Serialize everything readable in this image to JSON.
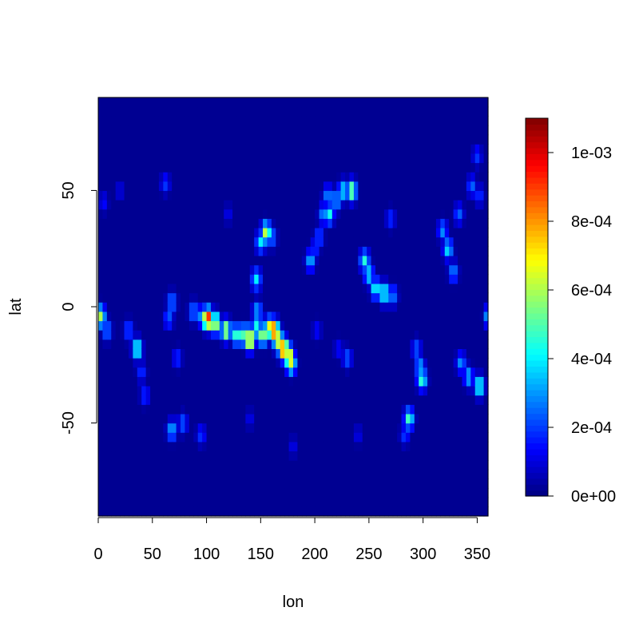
{
  "chart_data": {
    "type": "heatmap",
    "title": "",
    "xlabel": "lon",
    "ylabel": "lat",
    "xlim": [
      0,
      360
    ],
    "ylim": [
      -90,
      90
    ],
    "x_ticks": [
      0,
      50,
      100,
      150,
      200,
      250,
      300,
      350
    ],
    "x_tick_labels": [
      "0",
      "50",
      "100",
      "150",
      "200",
      "250",
      "300",
      "350"
    ],
    "y_ticks": [
      -50,
      0,
      50
    ],
    "y_tick_labels": [
      "-50",
      "0",
      "50"
    ],
    "colorbar": {
      "min": 0,
      "max": 0.0011,
      "ticks": [
        0,
        0.0002,
        0.0004,
        0.0006,
        0.0008,
        0.001
      ],
      "tick_labels": [
        "0e+00",
        "2e-04",
        "4e-04",
        "6e-04",
        "8e-04",
        "1e-03"
      ],
      "colormap": [
        "#00007F",
        "#0000FF",
        "#007FFF",
        "#00FFFF",
        "#7FFF7F",
        "#FFFF00",
        "#FF7F00",
        "#FF0000",
        "#7F0000"
      ]
    },
    "background_value": 2e-05,
    "features": [
      {
        "lon": 2,
        "lat": -4,
        "value": 0.0006
      },
      {
        "lon": 8,
        "lat": -10,
        "value": 0.0003
      },
      {
        "lon": 28,
        "lat": -10,
        "value": 0.00025
      },
      {
        "lon": 36,
        "lat": -18,
        "value": 0.0005
      },
      {
        "lon": 40,
        "lat": -28,
        "value": 0.0002
      },
      {
        "lon": 43,
        "lat": -38,
        "value": 0.0002
      },
      {
        "lon": 68,
        "lat": 2,
        "value": 0.0003
      },
      {
        "lon": 65,
        "lat": -5,
        "value": 0.00025
      },
      {
        "lon": 73,
        "lat": -22,
        "value": 0.0002
      },
      {
        "lon": 68,
        "lat": -53,
        "value": 0.00035
      },
      {
        "lon": 78,
        "lat": -50,
        "value": 0.00025
      },
      {
        "lon": 95,
        "lat": -55,
        "value": 0.0002
      },
      {
        "lon": 88,
        "lat": -2,
        "value": 0.0003
      },
      {
        "lon": 97,
        "lat": -4,
        "value": 0.00045
      },
      {
        "lon": 101,
        "lat": -5,
        "value": 0.001
      },
      {
        "lon": 108,
        "lat": -7,
        "value": 0.0007
      },
      {
        "lon": 118,
        "lat": -10,
        "value": 0.00065
      },
      {
        "lon": 128,
        "lat": -12,
        "value": 0.00055
      },
      {
        "lon": 136,
        "lat": -12,
        "value": 0.0006
      },
      {
        "lon": 140,
        "lat": -14,
        "value": 0.00085
      },
      {
        "lon": 146,
        "lat": -9,
        "value": 0.00045
      },
      {
        "lon": 147,
        "lat": -2,
        "value": 0.00035
      },
      {
        "lon": 146,
        "lat": 12,
        "value": 0.0004
      },
      {
        "lon": 152,
        "lat": -12,
        "value": 0.00065
      },
      {
        "lon": 158,
        "lat": -9,
        "value": 0.0007
      },
      {
        "lon": 162,
        "lat": -10,
        "value": 0.00095
      },
      {
        "lon": 166,
        "lat": -14,
        "value": 0.00075
      },
      {
        "lon": 171,
        "lat": -18,
        "value": 0.00095
      },
      {
        "lon": 176,
        "lat": -21,
        "value": 0.0008
      },
      {
        "lon": 178,
        "lat": -24,
        "value": 0.00065
      },
      {
        "lon": 155,
        "lat": 32,
        "value": 0.00065
      },
      {
        "lon": 150,
        "lat": 28,
        "value": 0.0004
      },
      {
        "lon": 160,
        "lat": 30,
        "value": 0.0003
      },
      {
        "lon": 62,
        "lat": 53,
        "value": 0.0002
      },
      {
        "lon": 200,
        "lat": 25,
        "value": 0.0002
      },
      {
        "lon": 196,
        "lat": 20,
        "value": 0.00035
      },
      {
        "lon": 204,
        "lat": 30,
        "value": 0.00025
      },
      {
        "lon": 208,
        "lat": 40,
        "value": 0.0003
      },
      {
        "lon": 212,
        "lat": 48,
        "value": 0.0003
      },
      {
        "lon": 220,
        "lat": 46,
        "value": 0.00035
      },
      {
        "lon": 226,
        "lat": 50,
        "value": 0.0004
      },
      {
        "lon": 234,
        "lat": 50,
        "value": 0.0006
      },
      {
        "lon": 213,
        "lat": 40,
        "value": 0.00045
      },
      {
        "lon": 246,
        "lat": 20,
        "value": 0.00045
      },
      {
        "lon": 250,
        "lat": 14,
        "value": 0.0004
      },
      {
        "lon": 256,
        "lat": 8,
        "value": 0.00045
      },
      {
        "lon": 264,
        "lat": 6,
        "value": 0.0005
      },
      {
        "lon": 272,
        "lat": 5,
        "value": 0.0003
      },
      {
        "lon": 270,
        "lat": 38,
        "value": 0.0002
      },
      {
        "lon": 222,
        "lat": -18,
        "value": 0.00015
      },
      {
        "lon": 230,
        "lat": -22,
        "value": 0.00025
      },
      {
        "lon": 202,
        "lat": -10,
        "value": 0.00015
      },
      {
        "lon": 287,
        "lat": -48,
        "value": 0.0005
      },
      {
        "lon": 283,
        "lat": -55,
        "value": 0.0002
      },
      {
        "lon": 294,
        "lat": -18,
        "value": 0.00025
      },
      {
        "lon": 297,
        "lat": -26,
        "value": 0.00035
      },
      {
        "lon": 299,
        "lat": -31,
        "value": 0.0005
      },
      {
        "lon": 318,
        "lat": 33,
        "value": 0.0003
      },
      {
        "lon": 323,
        "lat": 25,
        "value": 0.0004
      },
      {
        "lon": 328,
        "lat": 15,
        "value": 0.0003
      },
      {
        "lon": 333,
        "lat": 40,
        "value": 0.00025
      },
      {
        "lon": 345,
        "lat": 52,
        "value": 0.00025
      },
      {
        "lon": 352,
        "lat": 48,
        "value": 0.0002
      },
      {
        "lon": 350,
        "lat": 65,
        "value": 0.0002
      },
      {
        "lon": 342,
        "lat": -30,
        "value": 0.00035
      },
      {
        "lon": 352,
        "lat": -34,
        "value": 0.0005
      },
      {
        "lon": 335,
        "lat": -24,
        "value": 0.0003
      },
      {
        "lon": 120,
        "lat": 40,
        "value": 0.00012
      },
      {
        "lon": 380,
        "lat": 0,
        "value": 0
      },
      {
        "lon": 180,
        "lat": -60,
        "value": 0.00012
      },
      {
        "lon": 240,
        "lat": -55,
        "value": 0.00012
      },
      {
        "lon": 140,
        "lat": -48,
        "value": 0.00012
      },
      {
        "lon": 20,
        "lat": 50,
        "value": 0.00012
      },
      {
        "lon": 5,
        "lat": 45,
        "value": 0.00015
      }
    ]
  }
}
